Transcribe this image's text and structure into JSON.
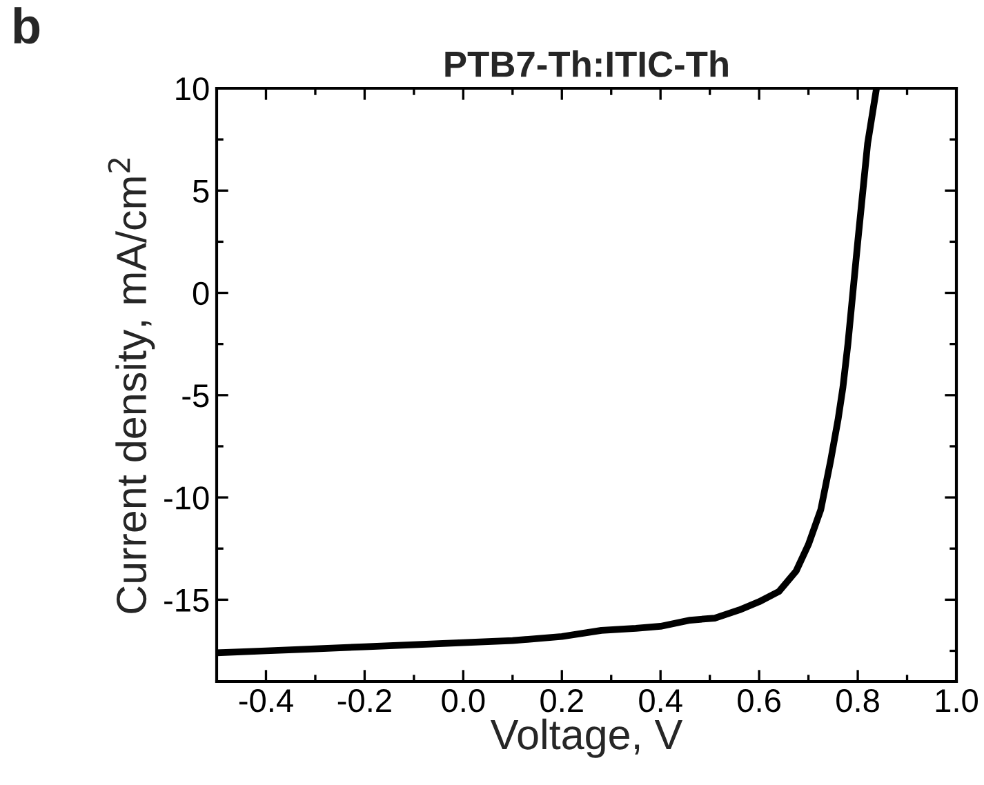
{
  "chart_data": {
    "type": "line",
    "title": "PTB7-Th:ITIC-Th",
    "xlabel": "Voltage, V",
    "ylabel": "Current density, mA/cm$^{2}$",
    "annotations": [
      "b"
    ],
    "series": [
      {
        "color": "#000000",
        "x": [
          -0.5,
          -0.4,
          -0.3,
          -0.2,
          -0.1,
          0.0,
          0.1,
          0.2,
          0.28,
          0.35,
          0.4,
          0.46,
          0.51,
          0.56,
          0.6,
          0.64,
          0.675,
          0.7,
          0.725,
          0.745,
          0.76,
          0.77,
          0.78,
          0.8,
          0.82,
          0.838
        ],
        "values": [
          -17.6,
          -17.5,
          -17.4,
          -17.3,
          -17.2,
          -17.1,
          -17.0,
          -16.8,
          -16.5,
          -16.4,
          -16.3,
          -16.0,
          -15.9,
          -15.5,
          -15.1,
          -14.6,
          -13.6,
          -12.3,
          -10.6,
          -8.2,
          -6.2,
          -4.6,
          -2.5,
          2.5,
          7.3,
          10.0
        ]
      }
    ],
    "xlim": [
      -0.5,
      1.0
    ],
    "xticks": [
      {
        "value": -0.4,
        "label": "-0.4"
      },
      {
        "value": -0.2,
        "label": "-0.2"
      },
      {
        "value": 0.0,
        "label": "0.0"
      },
      {
        "value": 0.2,
        "label": "0.2"
      },
      {
        "value": 0.4,
        "label": "0.4"
      },
      {
        "value": 0.6,
        "label": "0.6"
      },
      {
        "value": 0.8,
        "label": "0.8"
      },
      {
        "value": 1.0,
        "label": "1.0"
      }
    ],
    "ylim": [
      -19,
      10
    ],
    "yticks": [
      {
        "value": -15,
        "label": "-15"
      },
      {
        "value": -10,
        "label": "-10"
      },
      {
        "value": -5,
        "label": "-5"
      },
      0,
      5,
      10
    ],
    "grid": false,
    "legend": false,
    "marker": "none",
    "line_style": "solid"
  }
}
